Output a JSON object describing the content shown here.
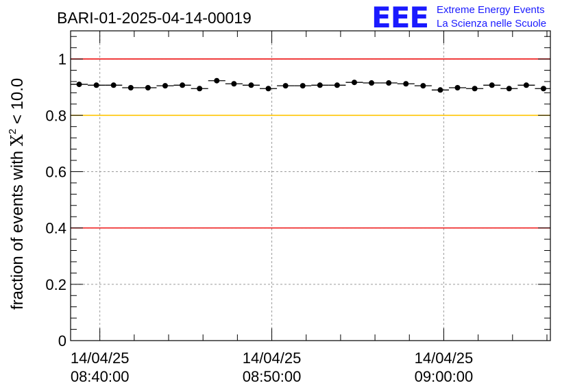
{
  "header": {
    "run_id": "BARI-01-2025-04-14-00019",
    "logo_letters": "EEE",
    "logo_line1": "Extreme Energy Events",
    "logo_line2": "La Scienza nelle Scuole"
  },
  "colors": {
    "threshold_high": "#ee1111",
    "threshold_warn": "#ffc400",
    "threshold_low": "#ee1111",
    "logo": "#1a1aff",
    "points": "#000000"
  },
  "chart_data": {
    "type": "scatter",
    "title": "BARI-01-2025-04-14-00019",
    "ylabel_prefix": "fraction of events with ",
    "ylabel_symbol": "X",
    "ylabel_superscript": "2",
    "ylabel_suffix": " < 10.0",
    "xlabel": "",
    "ylim": [
      0,
      1.1
    ],
    "xlim_minutes": [
      -1.7,
      26.2
    ],
    "x_unit": "minutes after 14/04/25 08:40:00",
    "grid": true,
    "y_ticks": [
      {
        "value": 0,
        "label": "0"
      },
      {
        "value": 0.2,
        "label": "0.2"
      },
      {
        "value": 0.4,
        "label": "0.4"
      },
      {
        "value": 0.6,
        "label": "0.6"
      },
      {
        "value": 0.8,
        "label": "0.8"
      },
      {
        "value": 1,
        "label": "1"
      }
    ],
    "x_ticks": [
      {
        "minute": 0,
        "date": "14/04/25",
        "time": "08:40:00"
      },
      {
        "minute": 10,
        "date": "14/04/25",
        "time": "08:50:00"
      },
      {
        "minute": 20,
        "date": "14/04/25",
        "time": "09:00:00"
      }
    ],
    "reference_lines": [
      {
        "name": "upper-red",
        "value": 1.0,
        "color": "#ee1111"
      },
      {
        "name": "yellow",
        "value": 0.8,
        "color": "#ffc400"
      },
      {
        "name": "lower-red",
        "value": 0.4,
        "color": "#ee1111"
      }
    ],
    "bin_width_minutes": 1.0,
    "series": [
      {
        "name": "fraction",
        "x": [
          -1.2,
          -0.2,
          0.8,
          1.8,
          2.8,
          3.8,
          4.8,
          5.8,
          6.8,
          7.8,
          8.8,
          9.8,
          10.8,
          11.8,
          12.8,
          13.8,
          14.8,
          15.8,
          16.8,
          17.8,
          18.8,
          19.8,
          20.8,
          21.8,
          22.8,
          23.8,
          24.8,
          25.8
        ],
        "values": [
          0.91,
          0.907,
          0.907,
          0.898,
          0.898,
          0.905,
          0.907,
          0.895,
          0.923,
          0.912,
          0.907,
          0.895,
          0.905,
          0.905,
          0.907,
          0.907,
          0.917,
          0.915,
          0.915,
          0.912,
          0.905,
          0.89,
          0.898,
          0.895,
          0.907,
          0.895,
          0.907,
          0.895
        ]
      }
    ]
  }
}
